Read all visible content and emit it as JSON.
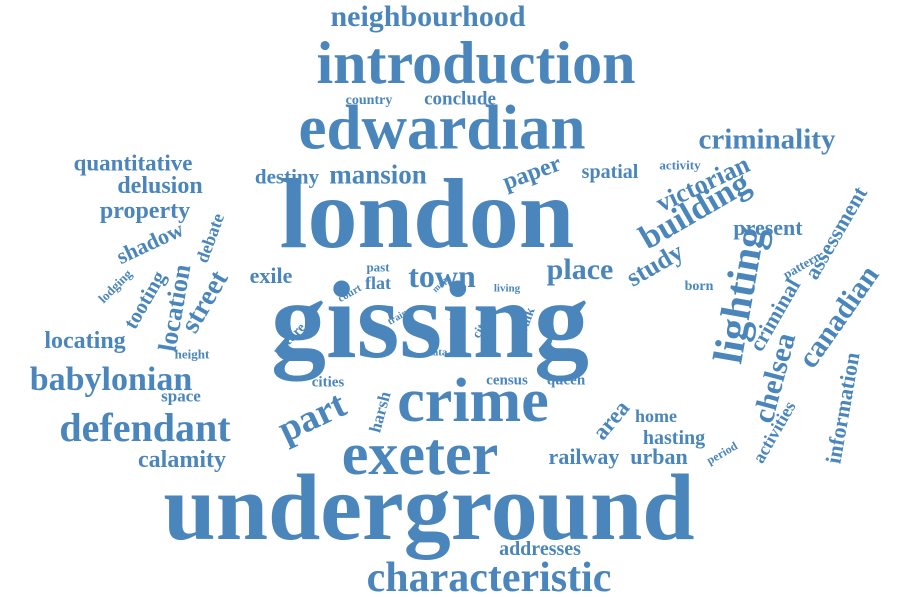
{
  "word_cloud": {
    "color": "#4a86bb",
    "words": [
      "neighbourhood",
      "introduction",
      "country",
      "conclude",
      "edwardian",
      "criminality",
      "quantitative",
      "destiny",
      "mansion",
      "paper",
      "spatial",
      "activity",
      "victorian",
      "delusion",
      "london",
      "property",
      "building",
      "present",
      "assessment",
      "debate",
      "shadow",
      "pattern",
      "lodging",
      "past",
      "train",
      "exile",
      "town",
      "place",
      "study",
      "born",
      "canadian",
      "location",
      "street",
      "court",
      "map",
      "flat",
      "living",
      "tooting",
      "lighting",
      "gissing",
      "criminal",
      "locating",
      "nature",
      "rise",
      "city",
      "walk",
      "height",
      "data",
      "babylonian",
      "cities",
      "census",
      "queen",
      "space",
      "chelsea",
      "information",
      "harsh",
      "part",
      "crime",
      "area",
      "home",
      "activities",
      "defendant",
      "hasting",
      "period",
      "calamity",
      "exeter",
      "railway",
      "urban",
      "underground",
      "addresses",
      "characteristic"
    ]
  }
}
